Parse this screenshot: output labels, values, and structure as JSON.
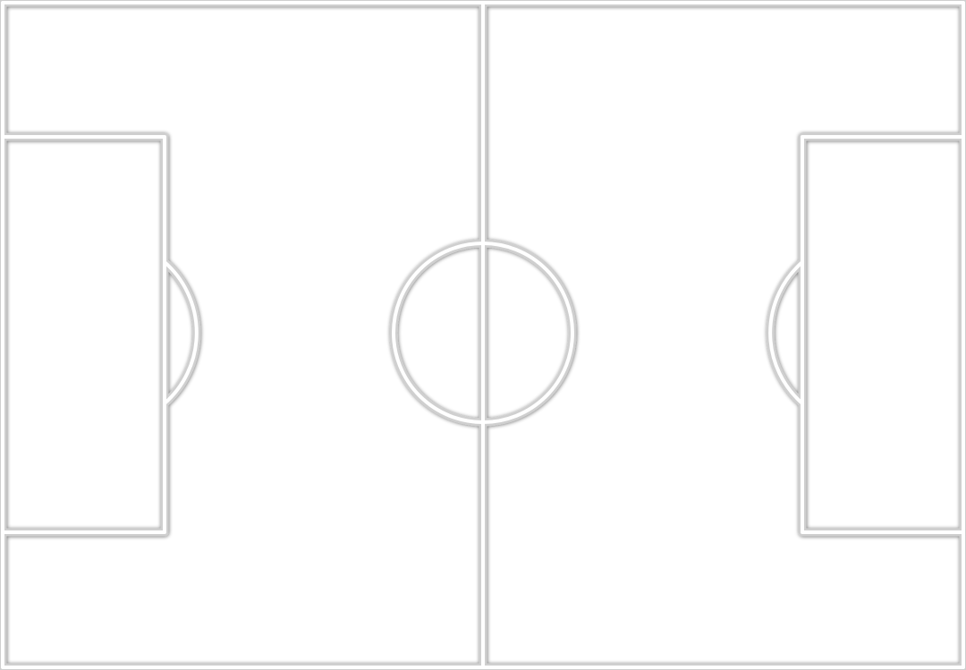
{
  "pitch": {
    "line_color": "#ffffff",
    "line_outline_color": "#cfcfcf",
    "background_color": "#ffffff"
  }
}
